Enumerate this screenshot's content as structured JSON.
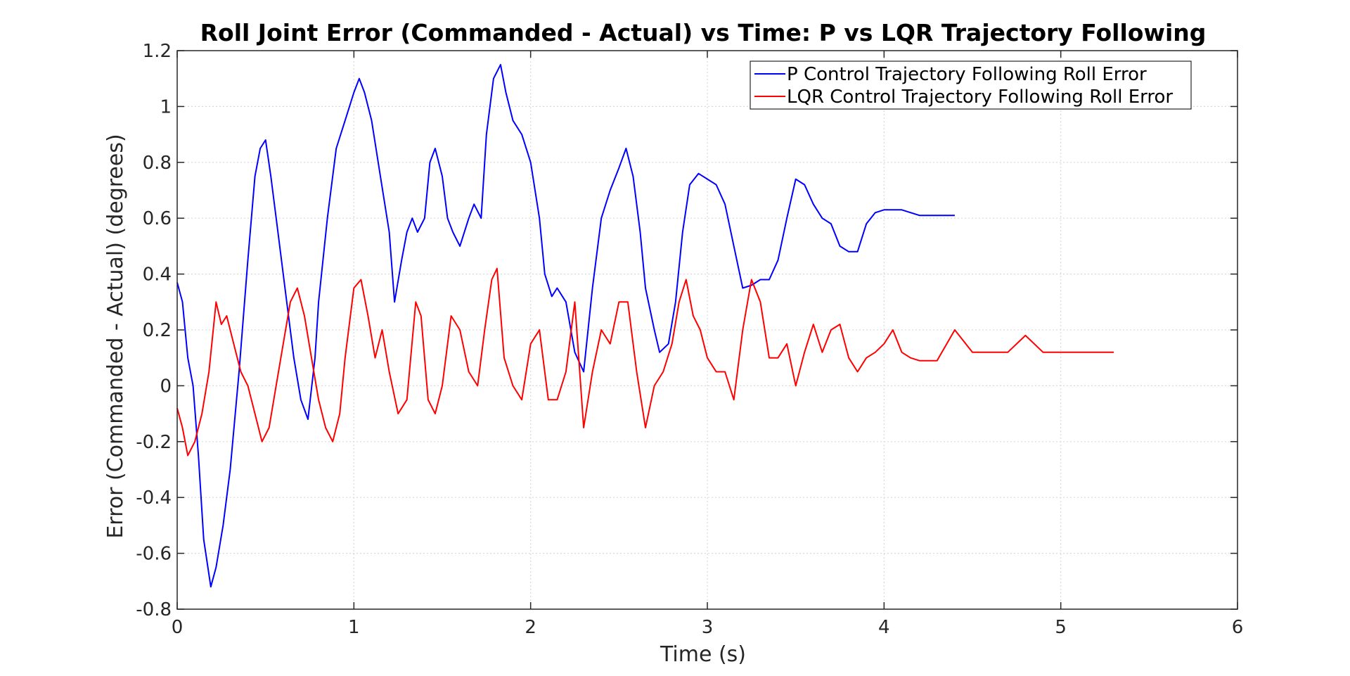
{
  "chart_data": {
    "type": "line",
    "title": "Roll Joint Error (Commanded - Actual) vs Time: P vs LQR Trajectory Following",
    "xlabel": "Time (s)",
    "ylabel": "Error (Commanded - Actual) (degrees)",
    "xlim": [
      0,
      6
    ],
    "ylim": [
      -0.8,
      1.2
    ],
    "xticks": [
      0,
      1,
      2,
      3,
      4,
      5,
      6
    ],
    "xtick_labels": [
      "0",
      "1",
      "2",
      "3",
      "4",
      "5",
      "6"
    ],
    "yticks": [
      -0.8,
      -0.6,
      -0.4,
      -0.2,
      0,
      0.2,
      0.4,
      0.6,
      0.8,
      1,
      1.2
    ],
    "ytick_labels": [
      "-0.8",
      "-0.6",
      "-0.4",
      "-0.2",
      "0",
      "0.2",
      "0.4",
      "0.6",
      "0.8",
      "1",
      "1.2"
    ],
    "grid": true,
    "legend_position": "top-right",
    "series": [
      {
        "name": "P Control Trajectory Following Roll Error",
        "color": "#0000ff",
        "x": [
          0,
          0.03,
          0.06,
          0.09,
          0.12,
          0.15,
          0.19,
          0.22,
          0.26,
          0.3,
          0.35,
          0.4,
          0.44,
          0.47,
          0.5,
          0.53,
          0.57,
          0.62,
          0.66,
          0.7,
          0.74,
          0.78,
          0.8,
          0.85,
          0.9,
          0.95,
          1.0,
          1.03,
          1.06,
          1.1,
          1.15,
          1.2,
          1.23,
          1.27,
          1.3,
          1.33,
          1.36,
          1.4,
          1.43,
          1.46,
          1.5,
          1.53,
          1.56,
          1.6,
          1.65,
          1.68,
          1.72,
          1.75,
          1.79,
          1.83,
          1.86,
          1.9,
          1.95,
          2.0,
          2.05,
          2.08,
          2.12,
          2.15,
          2.2,
          2.25,
          2.3,
          2.35,
          2.4,
          2.45,
          2.5,
          2.54,
          2.58,
          2.62,
          2.65,
          2.7,
          2.73,
          2.78,
          2.82,
          2.86,
          2.9,
          2.95,
          3.0,
          3.05,
          3.1,
          3.15,
          3.2,
          3.25,
          3.3,
          3.35,
          3.4,
          3.45,
          3.5,
          3.55,
          3.6,
          3.65,
          3.7,
          3.75,
          3.8,
          3.85,
          3.9,
          3.95,
          4.0,
          4.1,
          4.2,
          4.3,
          4.4
        ],
        "y": [
          0.37,
          0.3,
          0.1,
          0.0,
          -0.25,
          -0.55,
          -0.72,
          -0.65,
          -0.5,
          -0.3,
          0.05,
          0.45,
          0.75,
          0.85,
          0.88,
          0.75,
          0.55,
          0.3,
          0.1,
          -0.05,
          -0.12,
          0.1,
          0.3,
          0.6,
          0.85,
          0.95,
          1.05,
          1.1,
          1.05,
          0.95,
          0.75,
          0.55,
          0.3,
          0.45,
          0.55,
          0.6,
          0.55,
          0.6,
          0.8,
          0.85,
          0.75,
          0.6,
          0.55,
          0.5,
          0.6,
          0.65,
          0.6,
          0.9,
          1.1,
          1.15,
          1.05,
          0.95,
          0.9,
          0.8,
          0.6,
          0.4,
          0.32,
          0.35,
          0.3,
          0.12,
          0.05,
          0.35,
          0.6,
          0.7,
          0.78,
          0.85,
          0.75,
          0.55,
          0.35,
          0.2,
          0.12,
          0.15,
          0.3,
          0.55,
          0.72,
          0.76,
          0.74,
          0.72,
          0.65,
          0.5,
          0.35,
          0.36,
          0.38,
          0.38,
          0.45,
          0.6,
          0.74,
          0.72,
          0.65,
          0.6,
          0.58,
          0.5,
          0.48,
          0.48,
          0.58,
          0.62,
          0.63,
          0.63,
          0.61,
          0.61,
          0.61
        ]
      },
      {
        "name": "LQR Control Trajectory Following Roll Error",
        "color": "#ff0000",
        "x": [
          0,
          0.03,
          0.06,
          0.1,
          0.14,
          0.18,
          0.22,
          0.25,
          0.28,
          0.32,
          0.36,
          0.4,
          0.44,
          0.48,
          0.52,
          0.56,
          0.6,
          0.64,
          0.68,
          0.72,
          0.76,
          0.8,
          0.84,
          0.88,
          0.92,
          0.95,
          1.0,
          1.04,
          1.08,
          1.12,
          1.16,
          1.2,
          1.25,
          1.3,
          1.35,
          1.38,
          1.42,
          1.46,
          1.5,
          1.55,
          1.6,
          1.65,
          1.7,
          1.74,
          1.78,
          1.81,
          1.85,
          1.9,
          1.95,
          2.0,
          2.05,
          2.1,
          2.15,
          2.2,
          2.25,
          2.3,
          2.35,
          2.4,
          2.45,
          2.5,
          2.55,
          2.6,
          2.65,
          2.7,
          2.75,
          2.8,
          2.84,
          2.88,
          2.92,
          2.96,
          3.0,
          3.05,
          3.1,
          3.15,
          3.2,
          3.25,
          3.3,
          3.35,
          3.4,
          3.45,
          3.5,
          3.55,
          3.6,
          3.65,
          3.7,
          3.75,
          3.8,
          3.85,
          3.9,
          3.95,
          4.0,
          4.05,
          4.1,
          4.15,
          4.2,
          4.3,
          4.4,
          4.5,
          4.6,
          4.7,
          4.8,
          4.9,
          5.0,
          5.1,
          5.2,
          5.3
        ],
        "y": [
          -0.08,
          -0.15,
          -0.25,
          -0.2,
          -0.1,
          0.05,
          0.3,
          0.22,
          0.25,
          0.15,
          0.05,
          0.0,
          -0.1,
          -0.2,
          -0.15,
          0.0,
          0.15,
          0.3,
          0.35,
          0.25,
          0.1,
          -0.05,
          -0.15,
          -0.2,
          -0.1,
          0.1,
          0.35,
          0.38,
          0.25,
          0.1,
          0.2,
          0.05,
          -0.1,
          -0.05,
          0.3,
          0.25,
          -0.05,
          -0.1,
          0.0,
          0.25,
          0.2,
          0.05,
          0.0,
          0.2,
          0.38,
          0.42,
          0.1,
          0.0,
          -0.05,
          0.15,
          0.2,
          -0.05,
          -0.05,
          0.05,
          0.3,
          -0.15,
          0.05,
          0.2,
          0.15,
          0.3,
          0.3,
          0.05,
          -0.15,
          0.0,
          0.05,
          0.15,
          0.3,
          0.38,
          0.25,
          0.2,
          0.1,
          0.05,
          0.05,
          -0.05,
          0.2,
          0.38,
          0.3,
          0.1,
          0.1,
          0.15,
          0.0,
          0.12,
          0.22,
          0.12,
          0.2,
          0.22,
          0.1,
          0.05,
          0.1,
          0.12,
          0.15,
          0.2,
          0.12,
          0.1,
          0.09,
          0.09,
          0.2,
          0.12,
          0.12,
          0.12,
          0.18,
          0.12,
          0.12,
          0.12,
          0.12,
          0.12
        ]
      }
    ]
  }
}
